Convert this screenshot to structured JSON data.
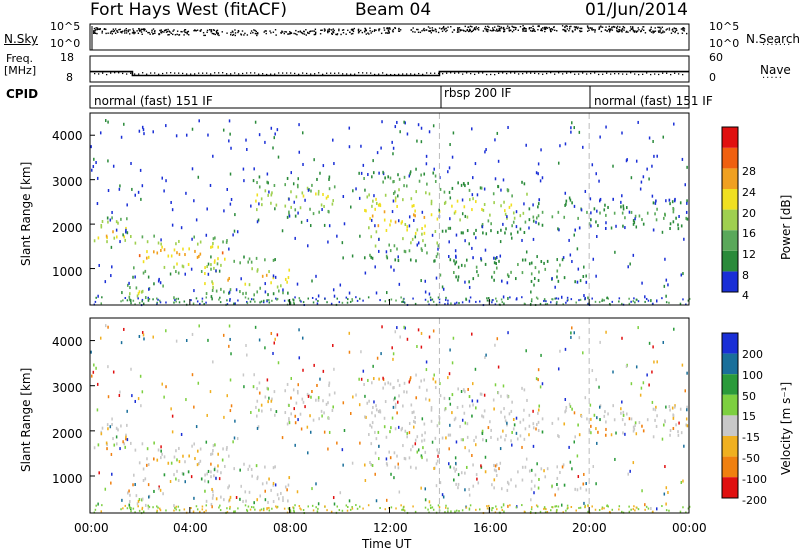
{
  "header": {
    "title": "Fort Hays West (fitACF)",
    "beam": "Beam 04",
    "date": "01/Jun/2014"
  },
  "noise_panel": {
    "left_label": "N.Sky",
    "right_label": "N.Search",
    "left_ticks": [
      "10^5",
      "10^0"
    ],
    "right_ticks": [
      "10^5",
      "10^0"
    ]
  },
  "freq_panel": {
    "left_label_1": "Freq.",
    "left_label_2": "[MHz]",
    "right_label": "Nave",
    "left_ticks": [
      "18",
      "8"
    ],
    "right_ticks": [
      "60",
      "0"
    ]
  },
  "cpid_panel": {
    "label": "CPID",
    "segments": [
      "normal (fast) 151 IF",
      "rbsp 200 IF",
      "normal (fast) 151 IF"
    ]
  },
  "power_panel": {
    "ylabel": "Slant Range [km]",
    "yticks": [
      "4000",
      "3000",
      "2000",
      "1000"
    ],
    "colorbar_label": "Power [dB]",
    "colorbar_ticks": [
      "28",
      "24",
      "20",
      "16",
      "12",
      "8",
      "4"
    ]
  },
  "velocity_panel": {
    "ylabel": "Slant Range [km]",
    "yticks": [
      "4000",
      "3000",
      "2000",
      "1000"
    ],
    "colorbar_label": "Velocity [m s⁻¹]",
    "colorbar_ticks": [
      "200",
      "100",
      "50",
      "15",
      "-15",
      "-50",
      "-100",
      "-200"
    ]
  },
  "xaxis": {
    "label": "Time UT",
    "ticks": [
      "00:00",
      "04:00",
      "08:00",
      "12:00",
      "16:00",
      "20:00",
      "00:00"
    ]
  },
  "colors": {
    "power_scale": [
      "#1a2fd6",
      "#2a8a3a",
      "#5aa85a",
      "#9fd050",
      "#f0e020",
      "#f0a020",
      "#f06010",
      "#e01010"
    ],
    "velocity_scale": [
      "#1a2fd6",
      "#1a6f9a",
      "#2a9a3a",
      "#7dd040",
      "#c8c8c8",
      "#f0b020",
      "#f08010",
      "#e01010"
    ]
  },
  "chart_data": {
    "type": "heatmap",
    "x_range_hours": [
      0,
      24
    ],
    "y_range_km": [
      180,
      4500
    ],
    "cpid_switch_hours": [
      14.0,
      20.0
    ],
    "frequency_mhz": [
      {
        "from": 0,
        "to": 1.7,
        "value": 12
      },
      {
        "from": 1.7,
        "to": 14.0,
        "value": 10.5
      },
      {
        "from": 14.0,
        "to": 24,
        "value": 12
      }
    ],
    "power_features": [
      {
        "t0": 0.0,
        "t1": 1.7,
        "r0": 1500,
        "r1": 2200,
        "peak_db": 26
      },
      {
        "t0": 1.7,
        "t1": 5.5,
        "r0": 900,
        "r1": 1800,
        "peak_db": 26
      },
      {
        "t0": 1.2,
        "t1": 3.5,
        "r0": 300,
        "r1": 700,
        "peak_db": 20
      },
      {
        "t0": 4.5,
        "t1": 8.0,
        "r0": 400,
        "r1": 1300,
        "peak_db": 24
      },
      {
        "t0": 6.5,
        "t1": 9.8,
        "r0": 2100,
        "r1": 3100,
        "peak_db": 20
      },
      {
        "t0": 10.9,
        "t1": 14.0,
        "r0": 1200,
        "r1": 3200,
        "peak_db": 24
      },
      {
        "t0": 14.0,
        "t1": 17.5,
        "r0": 1800,
        "r1": 3000,
        "peak_db": 20
      },
      {
        "t0": 17.5,
        "t1": 24.0,
        "r0": 1900,
        "r1": 2600,
        "peak_db": 12
      },
      {
        "t0": 14.0,
        "t1": 20.0,
        "r0": 700,
        "r1": 1300,
        "peak_db": 12
      }
    ]
  }
}
